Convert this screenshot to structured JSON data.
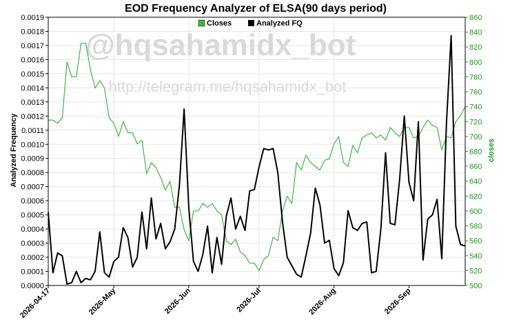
{
  "chart_data": {
    "type": "line",
    "title": "EOD Frequency Analyzer of ELSA(90 days period)",
    "ylabel_left": "Analyzed Frequency",
    "ylabel_right": "closes",
    "watermark": "@hqsahamidx_bot",
    "watermark_url": "http://telegram.me/hqsahamidx_bot",
    "ylim_left": [
      0,
      0.0019
    ],
    "ylim_right": [
      500,
      860
    ],
    "yticks_left": [
      "0.0000",
      "0.0001",
      "0.0002",
      "0.0003",
      "0.0004",
      "0.0005",
      "0.0006",
      "0.0007",
      "0.0008",
      "0.0009",
      "0.0010",
      "0.0011",
      "0.0012",
      "0.0013",
      "0.0014",
      "0.0015",
      "0.0016",
      "0.0017",
      "0.0018",
      "0.0019"
    ],
    "yticks_right": [
      "500",
      "520",
      "540",
      "560",
      "580",
      "600",
      "620",
      "640",
      "660",
      "680",
      "700",
      "720",
      "740",
      "760",
      "780",
      "800",
      "820",
      "840",
      "860"
    ],
    "x_tick_labels": [
      "2026-04-17",
      "2026-May",
      "2026-Jun",
      "2026-Jul",
      "2026-Aug",
      "2026-Sep"
    ],
    "x_tick_index": [
      0,
      14,
      30,
      45,
      61,
      77
    ],
    "n_points": 90,
    "legend": [
      {
        "name": "Closes",
        "color": "#3cb83c"
      },
      {
        "name": "Analyzed FQ",
        "color": "#000000"
      }
    ],
    "legend_position": "top-center",
    "series": [
      {
        "name": "Closes",
        "axis": "right",
        "color": "#3cb83c",
        "values": [
          722,
          722,
          718,
          725,
          800,
          780,
          780,
          825,
          825,
          790,
          765,
          775,
          765,
          725,
          718,
          700,
          720,
          705,
          705,
          690,
          695,
          650,
          665,
          658,
          645,
          628,
          640,
          605,
          605,
          575,
          560,
          600,
          600,
          610,
          605,
          610,
          600,
          595,
          560,
          555,
          562,
          545,
          540,
          530,
          530,
          520,
          535,
          540,
          565,
          560,
          600,
          620,
          610,
          665,
          655,
          675,
          665,
          660,
          655,
          668,
          670,
          690,
          700,
          665,
          660,
          688,
          678,
          698,
          702,
          705,
          698,
          702,
          695,
          712,
          705,
          700,
          712,
          712,
          698,
          700,
          712,
          722,
          715,
          712,
          682,
          700,
          698,
          720,
          728,
          740
        ]
      },
      {
        "name": "Analyzed FQ",
        "axis": "left",
        "color": "#000000",
        "values": [
          0.00052,
          9e-05,
          0.00023,
          0.00021,
          1e-05,
          2e-05,
          0.0001,
          2e-05,
          5e-05,
          4e-05,
          0.0001,
          0.00038,
          9e-05,
          6e-05,
          0.00017,
          0.0002,
          0.00041,
          0.00034,
          0.00013,
          0.0002,
          0.00052,
          0.00026,
          0.00062,
          0.00033,
          0.00044,
          0.00026,
          0.00031,
          0.0004,
          0.00071,
          0.00125,
          0.00055,
          0.00017,
          0.0001,
          0.00022,
          0.00042,
          9e-05,
          0.00034,
          0.00015,
          0.00049,
          0.00062,
          0.0004,
          0.00049,
          0.00039,
          0.00067,
          0.00068,
          0.00084,
          0.00097,
          0.00096,
          0.00097,
          0.0008,
          0.00045,
          0.0002,
          0.00014,
          8e-05,
          6e-05,
          0.00021,
          0.00037,
          0.00069,
          0.00057,
          0.0003,
          0.00032,
          0.00012,
          7e-05,
          0.00016,
          0.00053,
          0.00041,
          0.00039,
          0.00044,
          0.00045,
          9e-05,
          0.0001,
          0.0004,
          0.00094,
          0.00044,
          0.00043,
          0.00075,
          0.0012,
          0.00073,
          0.0006,
          0.00116,
          0.00018,
          0.00047,
          0.0005,
          0.00061,
          0.00019,
          0.00115,
          0.00177,
          0.00042,
          0.00029,
          0.00028
        ]
      }
    ]
  }
}
